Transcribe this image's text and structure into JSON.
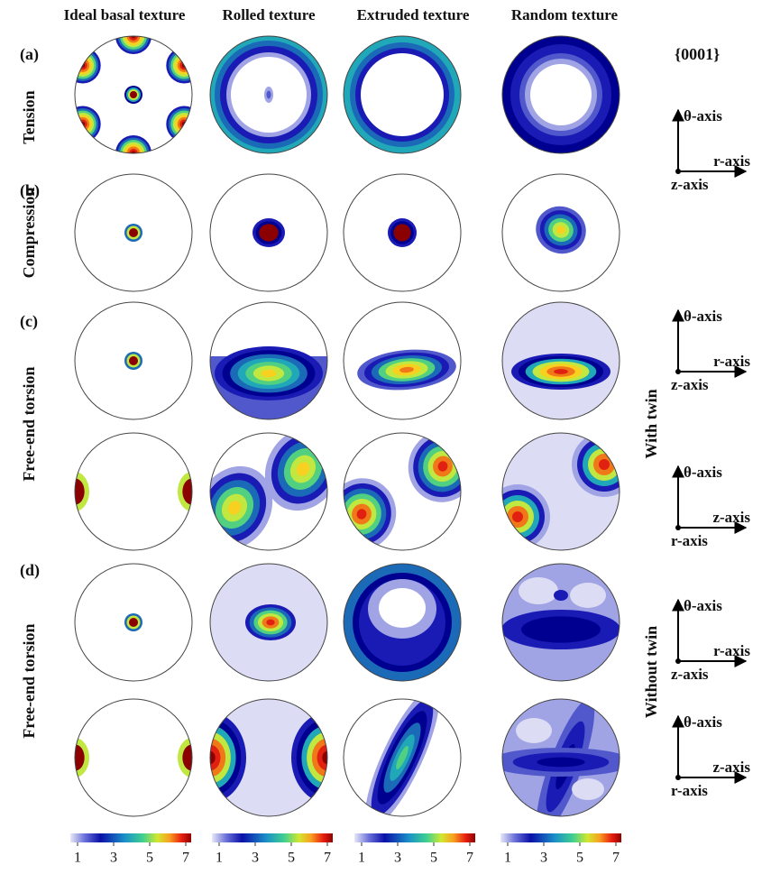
{
  "columns": [
    "Ideal basal texture",
    "Rolled texture",
    "Extruded texture",
    "Random texture"
  ],
  "pole": "{0001}",
  "rows": [
    {
      "label": "(a)",
      "name": "Tension"
    },
    {
      "label": "(b)",
      "name": "Compression"
    },
    {
      "label": "(c)",
      "name": "Free-end torsion"
    },
    {
      "label": "(d)",
      "name": "Free-end torsion"
    }
  ],
  "twin_labels": [
    "With twin",
    "Without twin"
  ],
  "axes": [
    {
      "top": "θ-axis",
      "right": "r-axis",
      "corner": "z-axis"
    },
    {
      "top": "θ-axis",
      "right": "r-axis",
      "corner": "z-axis"
    },
    {
      "top": "θ-axis",
      "right": "z-axis",
      "corner": "r-axis"
    },
    {
      "top": "θ-axis",
      "right": "r-axis",
      "corner": "z-axis"
    },
    {
      "top": "θ-axis",
      "right": "z-axis",
      "corner": "r-axis"
    }
  ],
  "colorbar": {
    "range": [
      0.6,
      7.3
    ],
    "ticks": [
      1,
      3,
      5,
      7
    ]
  }
}
